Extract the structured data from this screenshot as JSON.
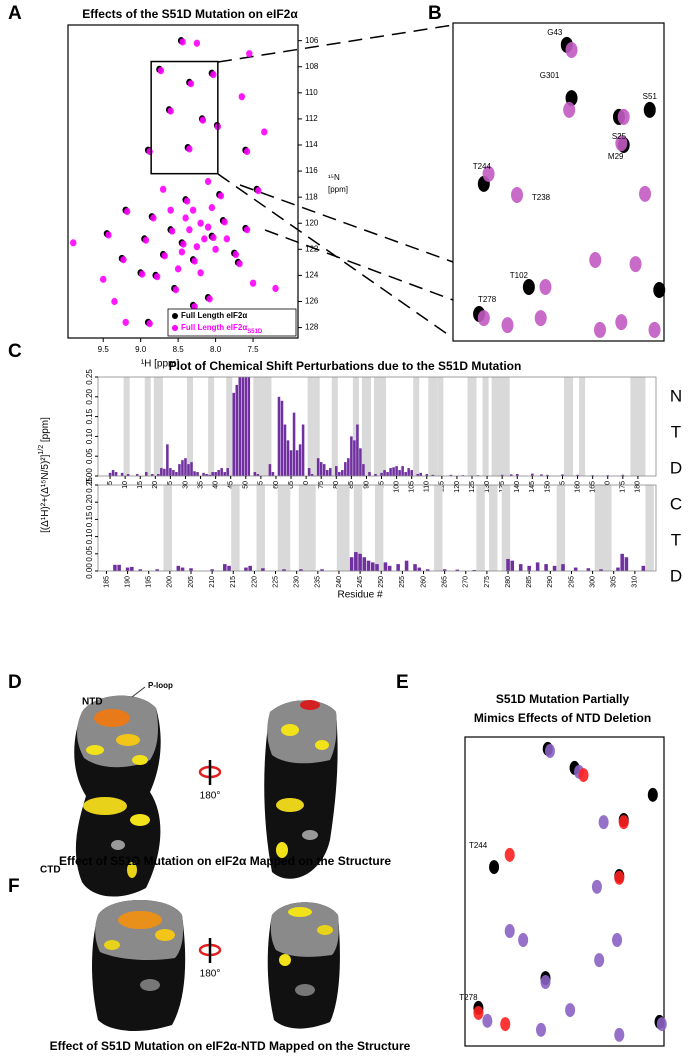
{
  "panel_labels": [
    "A",
    "B",
    "C",
    "D",
    "E",
    "F"
  ],
  "chart_data": [
    {
      "type": "scatter",
      "title": "Effects of the S51D Mutation on eIF2α",
      "xlabel": "¹H  [ppm]",
      "ylabel": [
        "¹⁵N",
        "[ppm]"
      ],
      "xlim": [
        9.97,
        6.9
      ],
      "ylim": [
        104.8,
        128.8
      ],
      "xticks": [
        9.5,
        {
          "value": 9,
          "label": "9.0"
        },
        8.5,
        {
          "value": 8,
          "label": "8.0"
        },
        7.5
      ],
      "yticks": [
        106,
        108,
        110,
        112,
        114,
        116,
        118,
        120,
        122,
        124,
        126,
        128
      ],
      "legend": "lower right",
      "series": [
        {
          "name": "Full Length eIF2α",
          "color": "#000000",
          "x": [
            8.75,
            8.46,
            8.35,
            8.05,
            8.62,
            8.18,
            7.98,
            8.9,
            8.37,
            7.6,
            9.45,
            9.2,
            8.85,
            8.95,
            8.7,
            8.6,
            8.45,
            8.3,
            8.05,
            7.9,
            7.75,
            7.6,
            7.7,
            8.8,
            9.25,
            8.55,
            8.3,
            8.1,
            8.25,
            8.9,
            7.45,
            7.95,
            8.4,
            9.0
          ],
          "y": [
            108.2,
            106.0,
            109.2,
            108.5,
            111.3,
            112.0,
            112.5,
            114.4,
            114.2,
            114.4,
            120.8,
            119.0,
            119.5,
            121.2,
            122.4,
            120.5,
            121.5,
            122.8,
            121.0,
            119.8,
            122.3,
            120.4,
            123.0,
            124.0,
            122.7,
            125.0,
            126.3,
            125.7,
            127.2,
            127.6,
            117.4,
            117.8,
            118.2,
            123.8
          ]
        },
        {
          "name": "Full Length eIF2α",
          "name_subscript": "S51D",
          "color": "#ff00ff",
          "x": [
            8.73,
            8.44,
            8.33,
            8.03,
            8.6,
            8.17,
            7.97,
            8.88,
            8.35,
            7.58,
            9.43,
            9.18,
            8.83,
            8.93,
            8.68,
            8.58,
            8.43,
            8.28,
            8.03,
            7.88,
            7.73,
            7.58,
            7.68,
            8.78,
            9.23,
            8.53,
            8.28,
            8.08,
            8.23,
            8.88,
            7.43,
            7.93,
            8.38,
            8.98,
            9.5,
            9.35,
            9.2,
            7.5,
            7.2,
            7.55,
            8.25,
            7.65,
            7.35,
            9.9,
            8.2,
            8.35,
            8.15,
            8.4,
            8.25,
            8.1,
            8.45,
            8.0,
            8.3,
            8.5,
            8.2,
            8.6,
            7.85,
            8.05,
            8.7,
            8.1
          ],
          "y": [
            108.3,
            106.1,
            109.3,
            108.6,
            111.4,
            112.1,
            112.6,
            114.5,
            114.3,
            114.5,
            120.9,
            119.1,
            119.6,
            121.3,
            122.5,
            120.6,
            121.6,
            122.9,
            121.1,
            119.9,
            122.4,
            120.5,
            123.1,
            124.1,
            122.8,
            125.1,
            126.4,
            125.8,
            127.3,
            127.7,
            117.5,
            117.9,
            118.3,
            123.9,
            124.3,
            126.0,
            127.6,
            124.6,
            125.0,
            107.0,
            106.2,
            110.3,
            113.0,
            121.5,
            120.0,
            120.5,
            121.2,
            119.6,
            121.8,
            120.3,
            122.2,
            122.0,
            119.0,
            123.5,
            123.8,
            119.0,
            121.2,
            118.8,
            117.4,
            116.8
          ]
        }
      ]
    },
    {
      "type": "scatter",
      "xlim": [
        8.86,
        7.97
      ],
      "ylim": [
        107.6,
        116.2
      ],
      "series": [
        {
          "color": "#000000",
          "x": [
            8.38,
            8.36,
            8.03,
            8.16,
            8.14,
            8.73,
            8.54,
            8.75,
            7.99
          ],
          "y": [
            108.19,
            109.63,
            109.95,
            110.14,
            110.9,
            111.95,
            114.74,
            115.47,
            114.82
          ]
        },
        {
          "color": "#c25bc2",
          "x": [
            8.36,
            8.37,
            8.14,
            8.15,
            8.71,
            8.59,
            8.05,
            8.47,
            8.73,
            8.26,
            8.09,
            8.15,
            8.24,
            8.49,
            8.63,
            8.01
          ],
          "y": [
            108.33,
            109.95,
            110.14,
            110.85,
            111.68,
            112.25,
            112.22,
            114.74,
            115.58,
            114.01,
            114.12,
            115.69,
            115.9,
            115.58,
            115.77,
            115.9
          ]
        }
      ],
      "peak_labels": [
        {
          "text": "G43",
          "series": 0,
          "peak": 0
        },
        {
          "text": "G301",
          "series": 0,
          "peak": 1
        },
        {
          "text": "S51",
          "series": 0,
          "peak": 2
        },
        {
          "text": "S25",
          "series": 0,
          "peak": 3
        },
        {
          "text": "M29",
          "series": 0,
          "peak": 4
        },
        {
          "text": "T244",
          "series": 0,
          "peak": 5
        },
        {
          "text": "T238",
          "series": 1,
          "peak": 5
        },
        {
          "text": "T102",
          "series": 0,
          "peak": 6
        },
        {
          "text": "T278",
          "series": 0,
          "peak": 7
        }
      ]
    },
    {
      "type": "bar",
      "title": "Plot of Chemical Shift Perturbations due to the S51D Mutation",
      "ylabel": [
        "[(Δ¹H)²+(Δ¹⁵N/5)²]",
        "1/2",
        " [ppm]"
      ],
      "side_label": [
        "N",
        "T",
        "D"
      ],
      "color": "#7030a0",
      "shade_color": "#d9d9d9",
      "xlim": [
        1,
        186
      ],
      "ylim": [
        0,
        0.25
      ],
      "yticks": [
        {
          "value": 0,
          "label": "0.00"
        },
        {
          "value": 0.05,
          "label": "0.05"
        },
        {
          "value": 0.1,
          "label": "0.10"
        },
        {
          "value": 0.15,
          "label": "0.15"
        },
        {
          "value": 0.2,
          "label": "0.20"
        },
        {
          "value": 0.25,
          "label": "0.25"
        }
      ],
      "xticks": [
        5,
        10,
        15,
        20,
        25,
        30,
        35,
        40,
        45,
        50,
        55,
        60,
        65,
        70,
        75,
        80,
        85,
        90,
        95,
        100,
        105,
        110,
        115,
        120,
        125,
        130,
        135,
        140,
        145,
        150,
        155,
        160,
        165,
        170,
        175,
        180
      ],
      "shaded": [
        [
          10,
          11
        ],
        [
          17,
          18
        ],
        [
          20,
          22
        ],
        [
          31,
          32
        ],
        [
          38,
          39
        ],
        [
          44,
          45
        ],
        [
          53,
          58
        ],
        [
          71,
          72
        ],
        [
          73,
          74
        ],
        [
          79,
          80
        ],
        [
          86,
          87
        ],
        [
          89,
          91
        ],
        [
          93,
          94
        ],
        [
          95,
          96
        ],
        [
          106,
          107
        ],
        [
          111,
          113
        ],
        [
          114,
          115
        ],
        [
          124,
          126
        ],
        [
          129,
          130
        ],
        [
          132,
          137
        ],
        [
          156,
          158
        ],
        [
          161,
          162
        ],
        [
          178,
          182
        ]
      ],
      "x": [
        5,
        6,
        7,
        9,
        11,
        14,
        17,
        19,
        21,
        22,
        23,
        24,
        25,
        26,
        27,
        28,
        29,
        30,
        31,
        32,
        33,
        34,
        36,
        37,
        38,
        39,
        40,
        41,
        42,
        43,
        44,
        46,
        47,
        48,
        49,
        50,
        51,
        53,
        54,
        58,
        59,
        61,
        62,
        63,
        64,
        65,
        66,
        67,
        68,
        69,
        71,
        72,
        74,
        75,
        76,
        77,
        78,
        80,
        81,
        82,
        83,
        84,
        85,
        86,
        87,
        88,
        89,
        91,
        93,
        95,
        96,
        97,
        98,
        99,
        100,
        101,
        102,
        103,
        104,
        105,
        107,
        108,
        110,
        112,
        118,
        122,
        127,
        135,
        138,
        140,
        145,
        148,
        150,
        155,
        160,
        165,
        170,
        175
      ],
      "values": [
        0.008,
        0.015,
        0.01,
        0.008,
        0.005,
        0.005,
        0.01,
        0.005,
        0.005,
        0.02,
        0.018,
        0.08,
        0.02,
        0.015,
        0.01,
        0.03,
        0.04,
        0.045,
        0.03,
        0.035,
        0.012,
        0.01,
        0.008,
        0.005,
        0.003,
        0.01,
        0.01,
        0.015,
        0.02,
        0.01,
        0.02,
        0.21,
        0.23,
        0.25,
        0.25,
        0.25,
        0.25,
        0.01,
        0.005,
        0.03,
        0.01,
        0.2,
        0.19,
        0.13,
        0.09,
        0.065,
        0.16,
        0.065,
        0.08,
        0.13,
        0.02,
        0.005,
        0.045,
        0.035,
        0.03,
        0.015,
        0.02,
        0.025,
        0.01,
        0.015,
        0.035,
        0.045,
        0.1,
        0.09,
        0.13,
        0.07,
        0.03,
        0.01,
        0.005,
        0.008,
        0.015,
        0.01,
        0.02,
        0.022,
        0.025,
        0.015,
        0.025,
        0.01,
        0.02,
        0.015,
        0.005,
        0.008,
        0.005,
        0.003,
        0.003,
        0.002,
        0.002,
        0.003,
        0.004,
        0.005,
        0.006,
        0.004,
        0.003,
        0.004,
        0.003,
        0.002,
        0.002,
        0.003
      ]
    },
    {
      "type": "bar",
      "xlabel": "Residue #",
      "side_label": [
        "C",
        "T",
        "D"
      ],
      "color": "#7030a0",
      "shade_color": "#d9d9d9",
      "xlim": [
        183,
        315
      ],
      "ylim": [
        0,
        0.25
      ],
      "yticks": [
        {
          "value": 0,
          "label": "0.00"
        },
        {
          "value": 0.05,
          "label": "0.05"
        },
        {
          "value": 0.1,
          "label": "0.10"
        },
        {
          "value": 0.15,
          "label": "0.15"
        },
        {
          "value": 0.2,
          "label": "0.20"
        },
        {
          "value": 0.25,
          "label": "0.25"
        }
      ],
      "xticks": [
        185,
        190,
        195,
        200,
        205,
        210,
        215,
        220,
        225,
        230,
        235,
        240,
        245,
        250,
        255,
        260,
        265,
        270,
        275,
        280,
        285,
        290,
        295,
        300,
        305,
        310
      ],
      "shaded": [
        [
          199,
          200
        ],
        [
          215,
          216
        ],
        [
          221,
          222
        ],
        [
          226,
          228
        ],
        [
          231,
          234
        ],
        [
          240,
          242
        ],
        [
          244,
          245
        ],
        [
          249,
          250
        ],
        [
          263,
          264
        ],
        [
          273,
          274
        ],
        [
          276,
          277
        ],
        [
          279,
          280
        ],
        [
          292,
          293
        ],
        [
          301,
          304
        ],
        [
          313,
          314
        ]
      ],
      "x": [
        187,
        188,
        190,
        191,
        193,
        197,
        202,
        203,
        205,
        210,
        213,
        214,
        218,
        219,
        222,
        227,
        231,
        236,
        243,
        244,
        245,
        246,
        247,
        248,
        249,
        251,
        252,
        254,
        256,
        258,
        259,
        261,
        265,
        268,
        272,
        280,
        281,
        283,
        285,
        287,
        289,
        291,
        293,
        296,
        299,
        302,
        306,
        307,
        308,
        312
      ],
      "values": [
        0.018,
        0.018,
        0.01,
        0.012,
        0.005,
        0.005,
        0.015,
        0.01,
        0.008,
        0.005,
        0.02,
        0.015,
        0.01,
        0.015,
        0.008,
        0.005,
        0.005,
        0.005,
        0.04,
        0.055,
        0.05,
        0.04,
        0.03,
        0.025,
        0.02,
        0.025,
        0.015,
        0.02,
        0.03,
        0.02,
        0.01,
        0.005,
        0.005,
        0.004,
        0.003,
        0.035,
        0.03,
        0.02,
        0.015,
        0.025,
        0.02,
        0.015,
        0.02,
        0.01,
        0.008,
        0.005,
        0.01,
        0.05,
        0.04,
        0.015
      ]
    },
    {
      "type": "scatter",
      "title": [
        "S51D Mutation Partially",
        "Mimics Effects of NTD Deletion"
      ],
      "xlim": [
        8.86,
        7.97
      ],
      "ylim": [
        107.6,
        116.2
      ],
      "series": [
        {
          "color": "#000000",
          "x": [
            8.49,
            8.37,
            8.02,
            8.15,
            8.73,
            8.17,
            8.5,
            8.8,
            7.99
          ],
          "y": [
            107.93,
            108.46,
            109.21,
            109.91,
            111.22,
            111.47,
            114.31,
            115.14,
            115.53
          ]
        },
        {
          "color": "#8a62c4",
          "x": [
            8.48,
            8.35,
            8.24,
            8.27,
            8.66,
            8.6,
            8.18,
            8.5,
            8.26,
            8.39,
            8.76,
            7.98,
            8.17,
            8.52
          ],
          "y": [
            107.99,
            108.57,
            109.97,
            111.77,
            113.0,
            113.25,
            113.25,
            114.42,
            113.81,
            115.2,
            115.5,
            115.59,
            115.89,
            115.75
          ]
        },
        {
          "color": "#ff2020",
          "x": [
            8.33,
            8.15,
            8.66,
            8.17,
            8.8,
            8.68
          ],
          "y": [
            108.66,
            109.97,
            110.88,
            111.52,
            115.28,
            115.59
          ]
        }
      ],
      "peak_labels": [
        {
          "text": "T244",
          "series": 0,
          "peak": 4
        },
        {
          "text": "T278",
          "series": 0,
          "peak": 7
        }
      ]
    }
  ],
  "structures": {
    "D": {
      "labels": [
        "NTD",
        "P-loop",
        "CTD"
      ],
      "rotation": "180°",
      "caption": "Effect of S51D Mutation on eIF2α Mapped on the Structure"
    },
    "F": {
      "rotation": "180°",
      "caption": "Effect of S51D Mutation on eIF2α-NTD Mapped on the Structure"
    }
  }
}
